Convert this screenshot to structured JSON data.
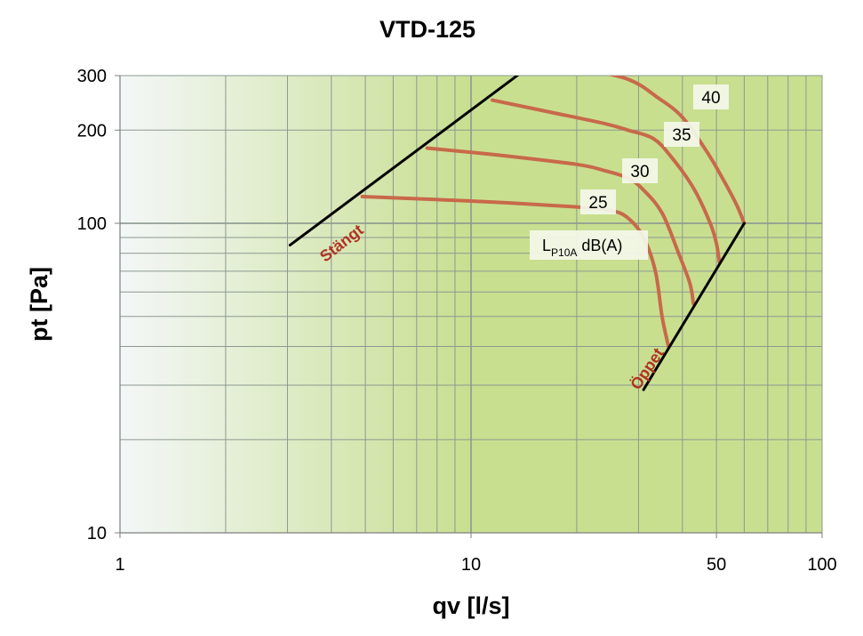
{
  "chart_data": {
    "type": "line",
    "title": "VTD-125",
    "xlabel": "qv [l/s]",
    "ylabel": "pt [Pa]",
    "x_scale": "log",
    "y_scale": "log",
    "xlim": [
      1,
      100
    ],
    "ylim": [
      10,
      300
    ],
    "x_ticks": [
      {
        "value": 1,
        "label": "1"
      },
      {
        "value": 10,
        "label": "10"
      },
      {
        "value": 50,
        "label": "50"
      },
      {
        "value": 100,
        "label": "100"
      }
    ],
    "y_ticks": [
      {
        "value": 10,
        "label": "10"
      },
      {
        "value": 100,
        "label": "100"
      },
      {
        "value": 200,
        "label": "200"
      },
      {
        "value": 300,
        "label": "300"
      }
    ],
    "grid": true,
    "legend_text": {
      "base": "L",
      "sub": "P10A",
      "rest": " dB(A)"
    },
    "colors": {
      "background_light": "#f3f7f8",
      "background_green": "#c8df90",
      "curve": "#c8694a",
      "boundary": "#000000",
      "boundary_label": "#b03325",
      "grid": "#8d9990"
    },
    "series": [
      {
        "name": "25",
        "points": [
          [
            4.9,
            122
          ],
          [
            10,
            118
          ],
          [
            20,
            113
          ],
          [
            25,
            110
          ],
          [
            28,
            104
          ],
          [
            31,
            90
          ],
          [
            33.5,
            70
          ],
          [
            35,
            50
          ],
          [
            36.5,
            40
          ]
        ]
      },
      {
        "name": "30",
        "points": [
          [
            7.5,
            175
          ],
          [
            12,
            166
          ],
          [
            20,
            155
          ],
          [
            24,
            148
          ],
          [
            28,
            140
          ],
          [
            31,
            128
          ],
          [
            35,
            108
          ],
          [
            39,
            80
          ],
          [
            42,
            64
          ],
          [
            43,
            55
          ]
        ]
      },
      {
        "name": "35",
        "points": [
          [
            11.5,
            250
          ],
          [
            17,
            228
          ],
          [
            24,
            210
          ],
          [
            28,
            200
          ],
          [
            33,
            188
          ],
          [
            37,
            165
          ],
          [
            43,
            130
          ],
          [
            48,
            100
          ],
          [
            50,
            86
          ],
          [
            51,
            75
          ]
        ]
      },
      {
        "name": "40",
        "points": [
          [
            20,
            320
          ],
          [
            28,
            292
          ],
          [
            34,
            255
          ],
          [
            40,
            220
          ],
          [
            47,
            170
          ],
          [
            52,
            140
          ],
          [
            57,
            115
          ],
          [
            60,
            100
          ]
        ]
      }
    ],
    "boundaries": [
      {
        "name": "Stängt",
        "points": [
          [
            3.05,
            85
          ],
          [
            14.6,
            320
          ]
        ]
      },
      {
        "name": "Öppet",
        "points": [
          [
            31,
            29
          ],
          [
            60,
            100
          ]
        ]
      }
    ]
  }
}
